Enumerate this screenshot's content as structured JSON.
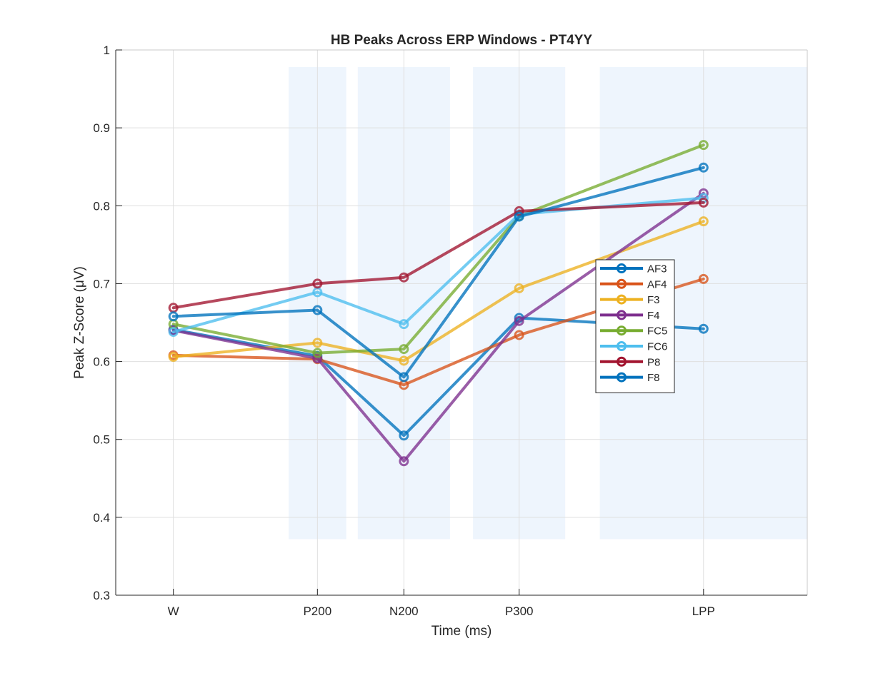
{
  "chart_data": {
    "type": "line",
    "title": "HB Peaks Across ERP Windows - PT4YY",
    "xlabel": "Time (ms)",
    "ylabel": "Peak Z-Score (μV)",
    "x_tick_labels": [
      "W",
      "P200",
      "N200",
      "P300",
      "LPP"
    ],
    "x_positions": [
      0,
      250,
      400,
      600,
      920
    ],
    "xlim": [
      -100,
      1100
    ],
    "ylim": [
      0.3,
      1.0
    ],
    "y_ticks": [
      0.3,
      0.4,
      0.5,
      0.6,
      0.7,
      0.8,
      0.9,
      1.0
    ],
    "y_tick_labels": [
      "0.3",
      "0.4",
      "0.5",
      "0.6",
      "0.7",
      "0.8",
      "0.9",
      "1"
    ],
    "grid": true,
    "legend_position": "inside-right",
    "shaded_windows": [
      {
        "x0": 200,
        "x1": 300,
        "y0": 0.372,
        "y1": 0.978,
        "color": "#eef5fd"
      },
      {
        "x0": 320,
        "x1": 480,
        "y0": 0.372,
        "y1": 0.978,
        "color": "#eef5fd"
      },
      {
        "x0": 520,
        "x1": 680,
        "y0": 0.372,
        "y1": 0.978,
        "color": "#eef5fd"
      },
      {
        "x0": 740,
        "x1": 1100,
        "y0": 0.372,
        "y1": 0.978,
        "color": "#eef5fd"
      }
    ],
    "series": [
      {
        "name": "AF3",
        "color": "#0072BD",
        "values": [
          0.641,
          0.607,
          0.505,
          0.656,
          0.642
        ]
      },
      {
        "name": "AF4",
        "color": "#D95319",
        "values": [
          0.608,
          0.603,
          0.57,
          0.634,
          0.706
        ]
      },
      {
        "name": "F3",
        "color": "#EDB120",
        "values": [
          0.606,
          0.624,
          0.601,
          0.694,
          0.78
        ]
      },
      {
        "name": "F4",
        "color": "#7E2F8E",
        "values": [
          0.64,
          0.604,
          0.472,
          0.652,
          0.816
        ]
      },
      {
        "name": "FC5",
        "color": "#77AC30",
        "values": [
          0.648,
          0.611,
          0.616,
          0.787,
          0.878
        ]
      },
      {
        "name": "FC6",
        "color": "#4DBEEE",
        "values": [
          0.638,
          0.689,
          0.648,
          0.789,
          0.81
        ]
      },
      {
        "name": "P8",
        "color": "#A2142F",
        "values": [
          0.669,
          0.7,
          0.708,
          0.793,
          0.804
        ]
      },
      {
        "name": "F8",
        "color": "#0072BD",
        "values": [
          0.658,
          0.666,
          0.58,
          0.786,
          0.849
        ]
      }
    ]
  }
}
